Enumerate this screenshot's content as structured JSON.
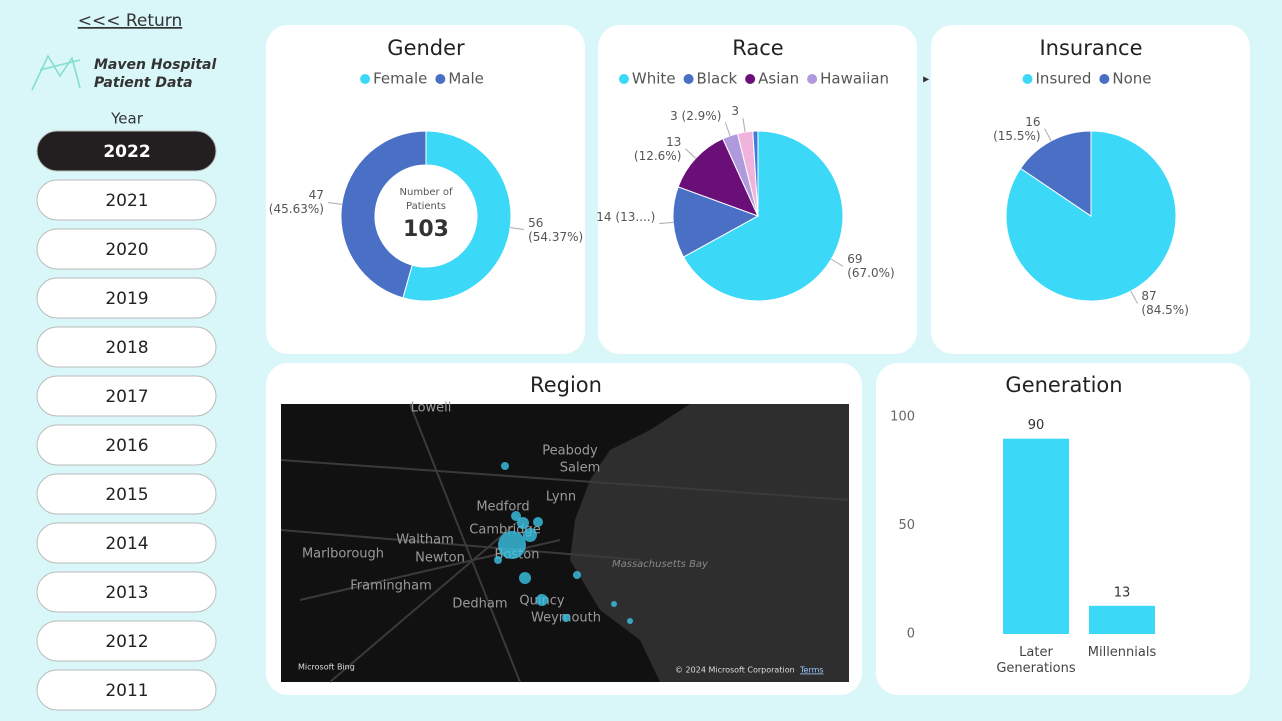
{
  "nav": {
    "return": "<<< Return",
    "brand_line1": "Maven Hospital",
    "brand_line2": "Patient Data",
    "year_label": "Year",
    "years": [
      "2022",
      "2021",
      "2020",
      "2019",
      "2018",
      "2017",
      "2016",
      "2015",
      "2014",
      "2013",
      "2012",
      "2011"
    ],
    "selected": "2022"
  },
  "chart_data": [
    {
      "type": "donut",
      "title": "Gender",
      "categories": [
        "Female",
        "Male"
      ],
      "values": [
        56,
        47
      ],
      "value_labels": [
        "56 (54.37%)",
        "47 (45.63%)"
      ],
      "colors": [
        "#3bd9f7",
        "#4a70c6"
      ],
      "center_label": "Number of Patients",
      "center_value": 103
    },
    {
      "type": "pie",
      "title": "Race",
      "categories": [
        "White",
        "Black",
        "Asian",
        "Hawaiian",
        null,
        null
      ],
      "values": [
        69,
        14,
        13,
        3,
        3,
        1
      ],
      "value_labels": [
        "69 (67.0%)",
        "14 (13....)",
        "13 (12.6%)",
        "3 (2.9%)",
        "3",
        null
      ],
      "colors": [
        "#3bd9f7",
        "#4a70c6",
        "#6b0f78",
        "#b09ade",
        "#f0b4dc",
        "#3d7be0"
      ],
      "legend_more": "▸"
    },
    {
      "type": "pie",
      "title": "Insurance",
      "categories": [
        "Insured",
        "None"
      ],
      "values": [
        87,
        16
      ],
      "value_labels": [
        "87 (84.5%)",
        "16 (15.5%)"
      ],
      "colors": [
        "#3bd9f7",
        "#4a70c6"
      ]
    },
    {
      "type": "map",
      "title": "Region",
      "places": [
        "Lowell",
        "Peabody",
        "Salem",
        "Lynn",
        "Medford",
        "Cambridge",
        "Boston",
        "Waltham",
        "Newton",
        "Marlborough",
        "Framingham",
        "Dedham",
        "Quincy",
        "Weymouth",
        "Massachusetts Bay"
      ],
      "attribution": "Microsoft Bing",
      "copyright": "© 2024 Microsoft Corporation",
      "terms": "Terms"
    },
    {
      "type": "bar",
      "title": "Generation",
      "categories": [
        "Later Generations",
        "Millennials"
      ],
      "values": [
        90,
        13
      ],
      "color": "#3bd9f7",
      "ylim": [
        0,
        100
      ],
      "yticks": [
        0,
        50,
        100
      ]
    }
  ]
}
